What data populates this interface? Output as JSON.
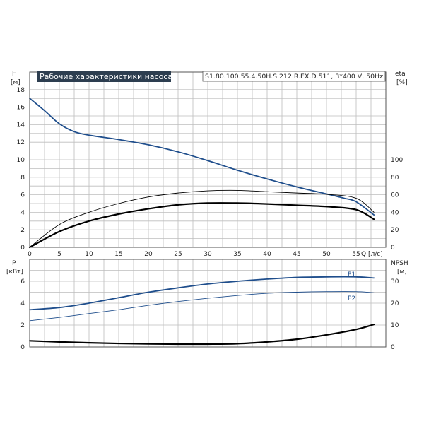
{
  "chart_data": [
    {
      "type": "line",
      "title": "Рабочие характеристики насоса",
      "model": "S1.80.100.55.4.50H.S.212.R.EX.D.511, 3*400 V, 50Hz",
      "xlabel": "Q [л/с]",
      "ylabel_left": "H",
      "ylabel_left_unit": "[м]",
      "ylabel_right": "eta",
      "ylabel_right_unit": "[%]",
      "xlim": [
        0,
        60
      ],
      "ylim_left": [
        0,
        20
      ],
      "ylim_right_scale": [
        0,
        200
      ],
      "xticks": [
        0,
        5,
        10,
        15,
        20,
        25,
        30,
        35,
        40,
        45,
        50,
        55
      ],
      "yticks_left": [
        0,
        2,
        4,
        6,
        8,
        10,
        12,
        14,
        16,
        18
      ],
      "yticks_right": [
        0,
        20,
        40,
        60,
        80,
        100
      ],
      "grid": true,
      "series": [
        {
          "axis": "left",
          "color": "#1f4e8c",
          "x": [
            0,
            2.5,
            5,
            7.5,
            10,
            15,
            20,
            25,
            30,
            35,
            40,
            45,
            50,
            53,
            55,
            58
          ],
          "y": [
            17.0,
            15.6,
            14.1,
            13.2,
            12.8,
            12.3,
            11.7,
            10.9,
            9.9,
            8.8,
            7.8,
            6.9,
            6.1,
            5.6,
            5.2,
            3.7
          ]
        },
        {
          "axis": "right",
          "color": "#000000",
          "x": [
            0,
            5,
            10,
            15,
            20,
            25,
            30,
            35,
            40,
            45,
            50,
            55,
            58
          ],
          "y": [
            0,
            26.0,
            40.0,
            50.0,
            57.5,
            62.0,
            64.5,
            65.0,
            63.5,
            62.0,
            60.5,
            56.0,
            40.0
          ]
        },
        {
          "axis": "right",
          "color": "#000000",
          "x": [
            0,
            5,
            10,
            15,
            20,
            25,
            30,
            35,
            40,
            45,
            50,
            55,
            58
          ],
          "y": [
            0,
            18.0,
            30.0,
            38.0,
            44.0,
            48.5,
            50.5,
            50.5,
            49.5,
            48.0,
            46.5,
            43.0,
            32.0
          ]
        }
      ]
    },
    {
      "type": "line",
      "ylabel_left": "P",
      "ylabel_left_unit": "[кВт]",
      "ylabel_right": "NPSH",
      "ylabel_right_unit": "[м]",
      "xlim": [
        0,
        60
      ],
      "ylim_left": [
        0,
        8
      ],
      "ylim_right": [
        0,
        40
      ],
      "yticks_left": [
        0,
        2,
        4,
        6
      ],
      "yticks_right": [
        0,
        10,
        20,
        30
      ],
      "grid": true,
      "series": [
        {
          "name": "P1",
          "axis": "left",
          "color": "#1f4e8c",
          "x": [
            0,
            5,
            10,
            15,
            20,
            25,
            30,
            35,
            40,
            45,
            50,
            55,
            58
          ],
          "y": [
            3.4,
            3.6,
            4.0,
            4.5,
            5.0,
            5.4,
            5.75,
            6.0,
            6.2,
            6.35,
            6.4,
            6.4,
            6.3
          ]
        },
        {
          "name": "P2",
          "axis": "left",
          "color": "#1f4e8c",
          "x": [
            0,
            5,
            10,
            15,
            20,
            25,
            30,
            35,
            40,
            45,
            50,
            55,
            58
          ],
          "y": [
            2.4,
            2.7,
            3.05,
            3.4,
            3.8,
            4.15,
            4.45,
            4.7,
            4.9,
            5.0,
            5.05,
            5.05,
            4.95
          ]
        },
        {
          "axis": "right",
          "color": "#000000",
          "x": [
            0,
            5,
            10,
            15,
            20,
            25,
            30,
            35,
            40,
            45,
            50,
            55,
            58
          ],
          "y": [
            2.8,
            2.3,
            1.9,
            1.6,
            1.4,
            1.3,
            1.3,
            1.5,
            2.3,
            3.5,
            5.5,
            8.0,
            10.3
          ]
        }
      ]
    }
  ]
}
